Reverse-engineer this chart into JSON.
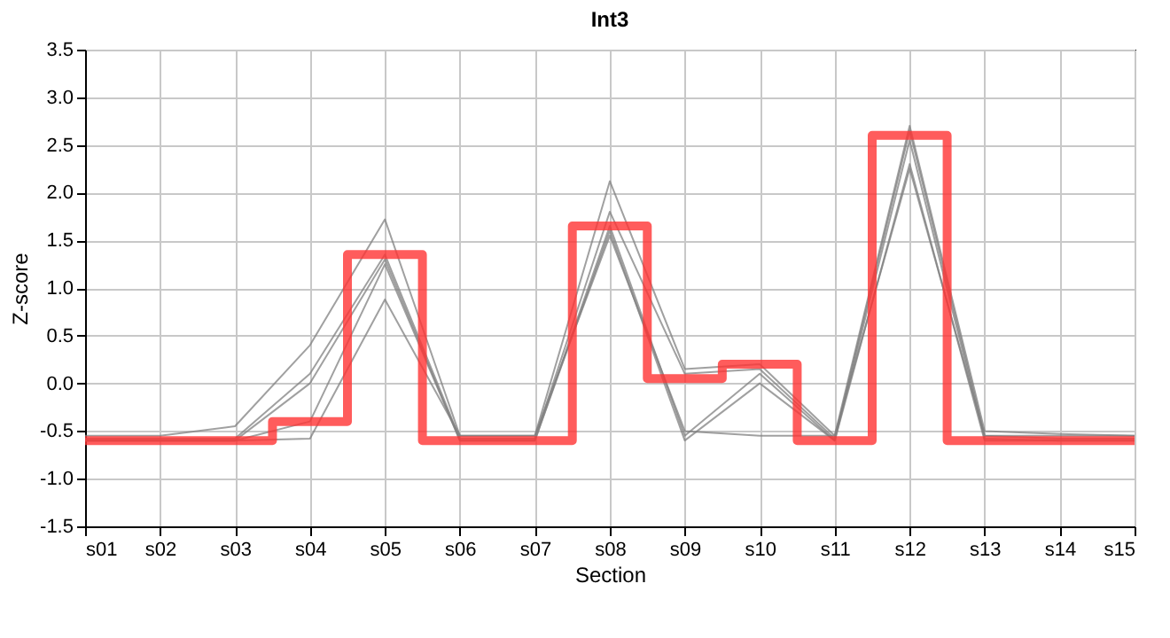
{
  "chart_data": {
    "type": "line",
    "title": "Int3",
    "xlabel": "Section",
    "ylabel": "Z-score",
    "categories": [
      "s01",
      "s02",
      "s03",
      "s04",
      "s05",
      "s06",
      "s07",
      "s08",
      "s09",
      "s10",
      "s11",
      "s12",
      "s13",
      "s14",
      "s15"
    ],
    "ylim": [
      -1.5,
      3.5
    ],
    "yticks": [
      {
        "value": -1.5,
        "label": "-1.5"
      },
      {
        "value": -1,
        "label": "-1.0"
      },
      -0.5,
      {
        "value": 0,
        "label": "0.0"
      },
      0.5,
      {
        "value": 1,
        "label": "1.0"
      },
      1.5,
      {
        "value": 2,
        "label": "2.0"
      },
      2.5,
      {
        "value": 3,
        "label": "3.0"
      },
      3.5
    ],
    "grid": true,
    "legend": false,
    "marker": "none",
    "series": [
      {
        "type": "line",
        "color": "#808080",
        "values": [
          -0.55,
          -0.55,
          -0.45,
          0.4,
          1.72,
          -0.55,
          -0.55,
          2.12,
          0.15,
          0.2,
          -0.55,
          2.7,
          -0.5,
          -0.53,
          -0.55
        ]
      },
      {
        "type": "line",
        "color": "#808080",
        "values": [
          -0.58,
          -0.58,
          -0.58,
          0.1,
          1.35,
          -0.58,
          -0.58,
          1.8,
          0.1,
          0.15,
          -0.58,
          2.65,
          -0.55,
          -0.58,
          -0.58
        ]
      },
      {
        "type": "line",
        "color": "#808080",
        "values": [
          -0.6,
          -0.6,
          -0.6,
          0.0,
          1.3,
          -0.6,
          -0.6,
          1.65,
          -0.55,
          0.1,
          -0.6,
          2.55,
          -0.58,
          -0.6,
          -0.6
        ]
      },
      {
        "type": "line",
        "color": "#808080",
        "values": [
          -0.6,
          -0.6,
          -0.6,
          -0.4,
          1.25,
          -0.6,
          -0.6,
          1.6,
          -0.6,
          0.0,
          -0.6,
          2.3,
          -0.6,
          -0.6,
          -0.6
        ]
      },
      {
        "type": "line",
        "color": "#808080",
        "values": [
          -0.6,
          -0.6,
          -0.6,
          -0.58,
          0.88,
          -0.55,
          -0.55,
          1.55,
          -0.5,
          -0.55,
          -0.55,
          2.25,
          -0.55,
          -0.55,
          -0.55
        ]
      },
      {
        "type": "step",
        "color": "#ff3333",
        "values": [
          -0.6,
          -0.6,
          -0.6,
          -0.4,
          1.35,
          -0.6,
          -0.6,
          1.65,
          0.05,
          0.2,
          -0.6,
          2.6,
          -0.6,
          -0.6,
          -0.6
        ]
      }
    ]
  }
}
